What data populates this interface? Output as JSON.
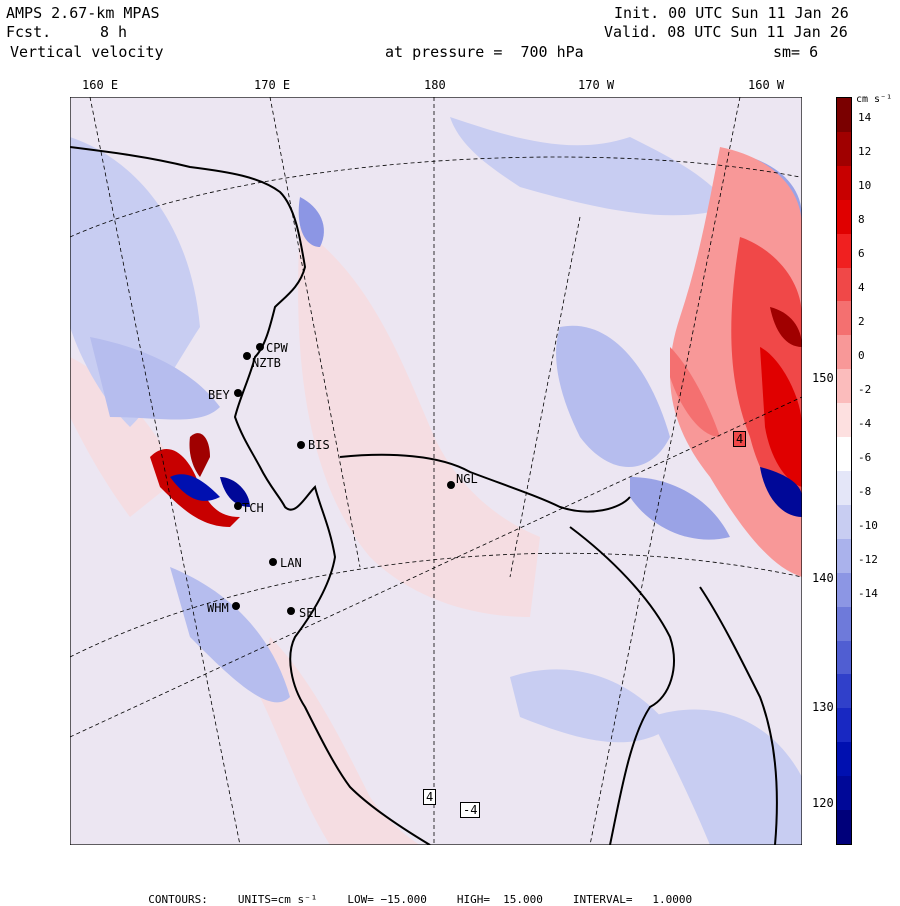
{
  "header": {
    "model": "AMPS 2.67-km MPAS",
    "fcst_label": "Fcst.",
    "fcst_value": "8 h",
    "field": "Vertical velocity",
    "init": "Init. 00 UTC Sun 11 Jan 26",
    "valid": "Valid. 08 UTC Sun 11 Jan 26",
    "level": "at pressure =  700 hPa",
    "smoothing": "sm= 6"
  },
  "longitude_labels_top": [
    "160 E",
    "170 E",
    "180",
    "170 W",
    "160 W"
  ],
  "longitude_labels_right": [
    "150 W",
    "140 W",
    "130 W",
    "120 W"
  ],
  "stations": [
    "CPW",
    "NZTB",
    "BEY",
    "BIS",
    "NGL",
    "LAN",
    "WHM",
    "SEL",
    "TCH"
  ],
  "contour_markers": [
    "4",
    "4",
    "-4"
  ],
  "colorbar": {
    "units": "cm s⁻¹",
    "labels": [
      "14",
      "12",
      "10",
      "8",
      "6",
      "4",
      "2",
      "0",
      "-2",
      "-4",
      "-6",
      "-8",
      "-10",
      "-12",
      "-14"
    ],
    "colors": [
      "#7a0000",
      "#a00000",
      "#c80000",
      "#e00000",
      "#f02020",
      "#f04848",
      "#f47070",
      "#f89898",
      "#fbbcbc",
      "#fde0e0",
      "#ffffff",
      "#e4e6f8",
      "#c8cdf2",
      "#aab2ec",
      "#8c96e4",
      "#6e7ada",
      "#505ed2",
      "#3040ca",
      "#1828c2",
      "#0010b0",
      "#000898",
      "#00007a"
    ]
  },
  "footer": {
    "contours_label": "CONTOURS:",
    "units": "UNITS=cm s⁻¹",
    "low": "LOW= −15.000",
    "high": "HIGH=  15.000",
    "interval": "INTERVAL=   1.0000"
  }
}
